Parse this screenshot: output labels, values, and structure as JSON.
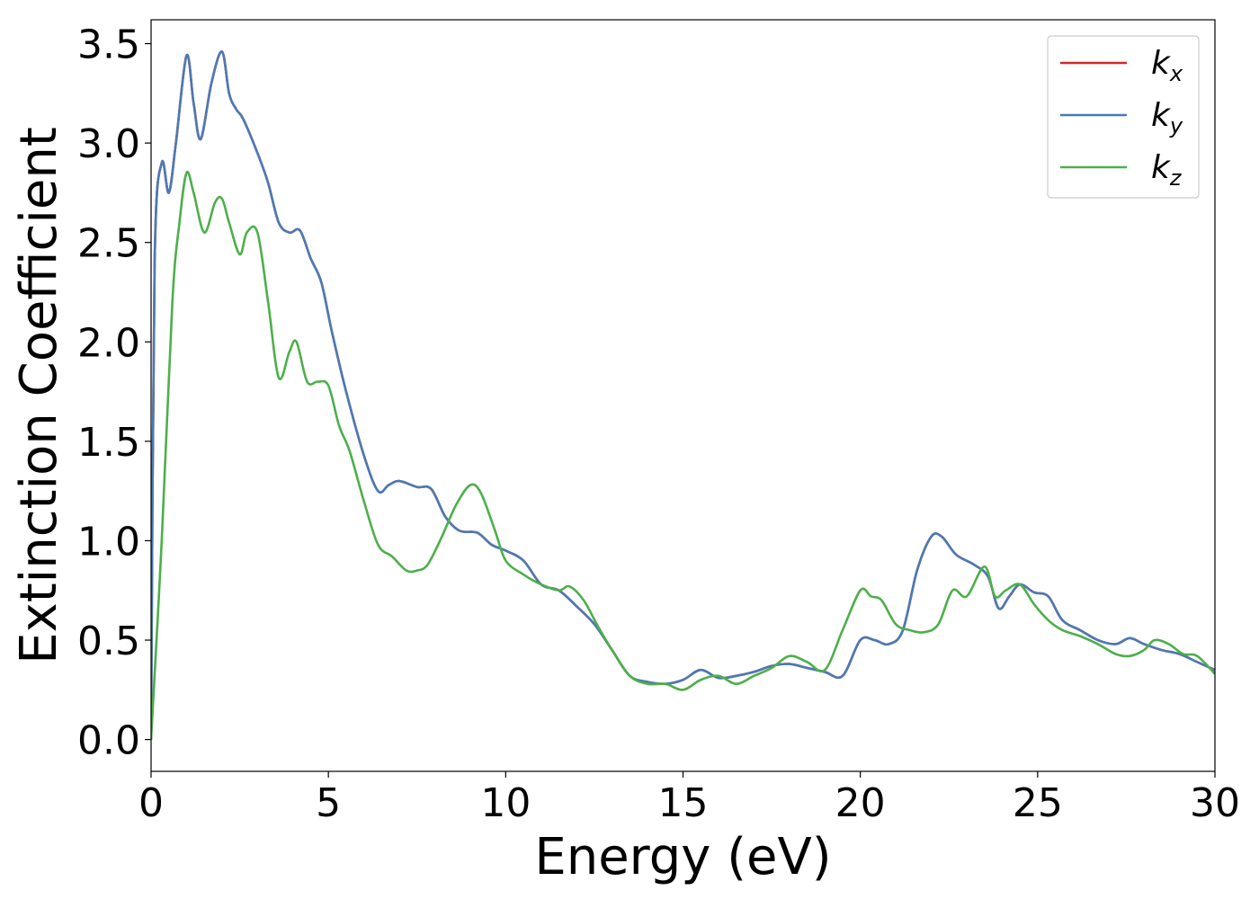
{
  "chart_data": {
    "type": "line",
    "xlabel": "Energy (eV)",
    "ylabel": "Extinction Coefficient",
    "xlim": [
      0,
      30
    ],
    "ylim": [
      -0.16,
      3.62
    ],
    "xticks": [
      0,
      5,
      10,
      15,
      20,
      25,
      30
    ],
    "yticks": [
      0.0,
      0.5,
      1.0,
      1.5,
      2.0,
      2.5,
      3.0,
      3.5
    ],
    "xtick_labels": [
      "0",
      "5",
      "10",
      "15",
      "20",
      "25",
      "30"
    ],
    "ytick_labels": [
      "0.0",
      "0.5",
      "1.0",
      "1.5",
      "2.0",
      "2.5",
      "3.0",
      "3.5"
    ],
    "grid": false,
    "legend_position": "top-right",
    "series": [
      {
        "name": "k",
        "subscript": "x",
        "color": "#d62728",
        "x": [
          0,
          0.1,
          0.3,
          0.5,
          0.7,
          1.0,
          1.2,
          1.4,
          1.7,
          2.0,
          2.2,
          2.4,
          2.6,
          3.0,
          3.3,
          3.6,
          3.9,
          4.2,
          4.5,
          4.8,
          5.1,
          5.5,
          6.0,
          6.4,
          6.7,
          7.0,
          7.5,
          7.9,
          8.3,
          8.7,
          9.2,
          9.6,
          10.0,
          10.5,
          11.0,
          11.5,
          12.0,
          12.5,
          13.0,
          13.5,
          14.0,
          14.5,
          15.0,
          15.5,
          16.0,
          16.5,
          17.0,
          17.5,
          18.0,
          18.5,
          19.0,
          19.5,
          20.0,
          20.4,
          20.8,
          21.2,
          21.6,
          22.0,
          22.3,
          22.7,
          23.2,
          23.6,
          23.9,
          24.2,
          24.5,
          24.9,
          25.3,
          25.7,
          26.2,
          26.7,
          27.2,
          27.6,
          28.0,
          28.5,
          29.0,
          29.5,
          30.0
        ],
        "y": [
          0.0,
          2.4,
          2.9,
          2.75,
          3.0,
          3.44,
          3.2,
          3.02,
          3.3,
          3.46,
          3.25,
          3.17,
          3.12,
          2.95,
          2.8,
          2.6,
          2.55,
          2.56,
          2.42,
          2.3,
          2.05,
          1.75,
          1.43,
          1.25,
          1.28,
          1.3,
          1.27,
          1.26,
          1.12,
          1.05,
          1.04,
          0.98,
          0.95,
          0.9,
          0.78,
          0.75,
          0.67,
          0.58,
          0.45,
          0.32,
          0.29,
          0.28,
          0.3,
          0.35,
          0.31,
          0.32,
          0.34,
          0.37,
          0.38,
          0.36,
          0.34,
          0.32,
          0.5,
          0.5,
          0.48,
          0.55,
          0.85,
          1.02,
          1.02,
          0.93,
          0.88,
          0.82,
          0.66,
          0.72,
          0.78,
          0.74,
          0.72,
          0.6,
          0.55,
          0.5,
          0.48,
          0.51,
          0.48,
          0.45,
          0.43,
          0.39,
          0.35
        ]
      },
      {
        "name": "k",
        "subscript": "y",
        "color": "#4a7ab5",
        "x": [
          0,
          0.1,
          0.3,
          0.5,
          0.7,
          1.0,
          1.2,
          1.4,
          1.7,
          2.0,
          2.2,
          2.4,
          2.6,
          3.0,
          3.3,
          3.6,
          3.9,
          4.2,
          4.5,
          4.8,
          5.1,
          5.5,
          6.0,
          6.4,
          6.7,
          7.0,
          7.5,
          7.9,
          8.3,
          8.7,
          9.2,
          9.6,
          10.0,
          10.5,
          11.0,
          11.5,
          12.0,
          12.5,
          13.0,
          13.5,
          14.0,
          14.5,
          15.0,
          15.5,
          16.0,
          16.5,
          17.0,
          17.5,
          18.0,
          18.5,
          19.0,
          19.5,
          20.0,
          20.4,
          20.8,
          21.2,
          21.6,
          22.0,
          22.3,
          22.7,
          23.2,
          23.6,
          23.9,
          24.2,
          24.5,
          24.9,
          25.3,
          25.7,
          26.2,
          26.7,
          27.2,
          27.6,
          28.0,
          28.5,
          29.0,
          29.5,
          30.0
        ],
        "y": [
          0.0,
          2.4,
          2.9,
          2.75,
          3.0,
          3.44,
          3.2,
          3.02,
          3.3,
          3.46,
          3.25,
          3.17,
          3.12,
          2.95,
          2.8,
          2.6,
          2.55,
          2.56,
          2.42,
          2.3,
          2.05,
          1.75,
          1.43,
          1.25,
          1.28,
          1.3,
          1.27,
          1.26,
          1.12,
          1.05,
          1.04,
          0.98,
          0.95,
          0.9,
          0.78,
          0.75,
          0.67,
          0.58,
          0.45,
          0.32,
          0.29,
          0.28,
          0.3,
          0.35,
          0.31,
          0.32,
          0.34,
          0.37,
          0.38,
          0.36,
          0.34,
          0.32,
          0.5,
          0.5,
          0.48,
          0.55,
          0.85,
          1.02,
          1.02,
          0.93,
          0.88,
          0.82,
          0.66,
          0.72,
          0.78,
          0.74,
          0.72,
          0.6,
          0.55,
          0.5,
          0.48,
          0.51,
          0.48,
          0.45,
          0.43,
          0.39,
          0.35
        ]
      },
      {
        "name": "k",
        "subscript": "z",
        "color": "#4daf4a",
        "x": [
          0,
          0.3,
          0.6,
          0.8,
          1.0,
          1.2,
          1.5,
          1.8,
          2.0,
          2.2,
          2.5,
          2.7,
          3.0,
          3.3,
          3.6,
          3.9,
          4.1,
          4.4,
          4.7,
          5.0,
          5.3,
          5.6,
          6.0,
          6.4,
          6.8,
          7.2,
          7.5,
          7.8,
          8.2,
          8.6,
          9.0,
          9.3,
          9.7,
          10.0,
          10.5,
          11.0,
          11.5,
          11.8,
          12.2,
          12.6,
          13.0,
          13.5,
          14.0,
          14.5,
          15.0,
          15.5,
          16.0,
          16.5,
          17.0,
          17.5,
          18.0,
          18.5,
          19.0,
          19.5,
          20.0,
          20.3,
          20.6,
          21.0,
          21.4,
          21.8,
          22.2,
          22.6,
          23.0,
          23.5,
          23.8,
          24.1,
          24.5,
          24.9,
          25.3,
          25.7,
          26.2,
          26.7,
          27.2,
          27.6,
          28.0,
          28.3,
          28.7,
          29.1,
          29.5,
          30.0
        ],
        "y": [
          0.0,
          1.0,
          2.2,
          2.6,
          2.85,
          2.75,
          2.55,
          2.7,
          2.72,
          2.6,
          2.44,
          2.55,
          2.55,
          2.2,
          1.82,
          1.95,
          2.0,
          1.8,
          1.8,
          1.78,
          1.58,
          1.45,
          1.2,
          0.98,
          0.92,
          0.85,
          0.85,
          0.88,
          1.02,
          1.18,
          1.28,
          1.24,
          1.05,
          0.9,
          0.83,
          0.78,
          0.75,
          0.77,
          0.7,
          0.57,
          0.45,
          0.32,
          0.28,
          0.28,
          0.25,
          0.3,
          0.32,
          0.28,
          0.32,
          0.36,
          0.42,
          0.39,
          0.35,
          0.55,
          0.75,
          0.72,
          0.7,
          0.58,
          0.55,
          0.54,
          0.58,
          0.75,
          0.72,
          0.87,
          0.72,
          0.75,
          0.78,
          0.68,
          0.6,
          0.55,
          0.52,
          0.48,
          0.43,
          0.42,
          0.45,
          0.5,
          0.48,
          0.43,
          0.42,
          0.33
        ]
      }
    ]
  }
}
